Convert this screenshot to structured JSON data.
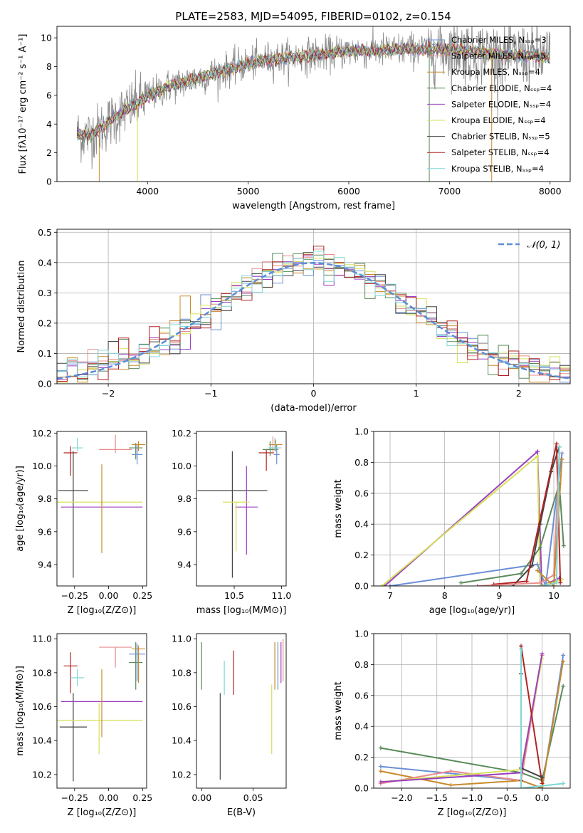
{
  "chart_data": [
    {
      "type": "line",
      "title": "PLATE=2583, MJD=54095, FIBERID=0102, z=0.154",
      "xlabel": "wavelength [Angstrom, rest frame]",
      "ylabel": "Flux [fλ10⁻¹⁷ erg cm⁻² s⁻¹ A⁻¹]",
      "xlim": [
        3100,
        8200
      ],
      "ylim": [
        0,
        10.8
      ],
      "xticks": [
        "4000",
        "5000",
        "6000",
        "7000",
        "8000"
      ],
      "yticks": [
        "0",
        "2",
        "4",
        "6",
        "8",
        "10"
      ],
      "grid": false,
      "legend_position": "right",
      "series": [
        {
          "name": "Chabrier MILES, Nₛₛₚ=3",
          "color": "#6b8fd6"
        },
        {
          "name": "Salpeter MILES, Nₛₛₚ=5",
          "color": "#e88b8b"
        },
        {
          "name": "Kroupa MILES, Nₛₛₚ=4",
          "color": "#c88a2a"
        },
        {
          "name": "Chabrier ELODIE, Nₛₛₚ=4",
          "color": "#5a8a5a"
        },
        {
          "name": "Salpeter ELODIE, Nₛₛₚ=4",
          "color": "#9b3fbf"
        },
        {
          "name": "Kroupa ELODIE, Nₛₛₚ=4",
          "color": "#d6e05a"
        },
        {
          "name": "Chabrier STELIB, Nₛₛₚ=5",
          "color": "#444444"
        },
        {
          "name": "Salpeter STELIB, Nₛₛₚ=4",
          "color": "#b22222"
        },
        {
          "name": "Kroupa STELIB, Nₛₛₚ=4",
          "color": "#7fd6d6"
        }
      ],
      "continuum": {
        "x": [
          3300,
          3400,
          3500,
          3700,
          3900,
          4000,
          4200,
          4500,
          4800,
          5000,
          5200,
          5500,
          5800,
          6000,
          6300,
          6600,
          7000,
          7200,
          7500,
          7800,
          8000
        ],
        "y": [
          3.3,
          3.2,
          3.5,
          4.6,
          5.5,
          5.9,
          6.6,
          7.2,
          7.8,
          8.2,
          8.5,
          8.7,
          8.9,
          9.1,
          9.1,
          9.2,
          9.2,
          9.1,
          8.8,
          8.8,
          8.6
        ]
      },
      "data_color": "#888888"
    },
    {
      "type": "line",
      "xlabel": "(data-model)/error",
      "ylabel": "Normed distribution",
      "xlim": [
        -2.5,
        2.5
      ],
      "ylim": [
        0,
        0.51
      ],
      "xticks": [
        "−2",
        "−1",
        "0",
        "1",
        "2"
      ],
      "yticks": [
        "0.0",
        "0.1",
        "0.2",
        "0.3",
        "0.4",
        "0.5"
      ],
      "grid": true,
      "legend": "𝒩(0, 1)",
      "legend_position": "top-right",
      "gaussian_color": "#5b8bd6",
      "bin_width": 0.1
    },
    {
      "type": "scatter",
      "xlabel": "Z [log₁₀(Z/Z⊙)]",
      "ylabel": "age  [log₁₀(age/yr)]",
      "xlim": [
        -0.38,
        0.28
      ],
      "ylim": [
        9.27,
        10.21
      ],
      "xticks": [
        "−0.25",
        "0.00",
        "0.25"
      ],
      "yticks": [
        "9.4",
        "9.6",
        "9.8",
        "10.0",
        "10.2"
      ],
      "points": [
        {
          "x": -0.26,
          "y": 9.85,
          "xerr": 0.11,
          "yerr_lo": 0.53,
          "yerr_hi": 0.24,
          "color": "#444444"
        },
        {
          "x": -0.05,
          "y": 9.75,
          "xerr": 0.3,
          "yerr_lo": 0.0,
          "yerr_hi": 0.0,
          "color": "#9b3fbf"
        },
        {
          "x": -0.07,
          "y": 9.78,
          "xerr": 0.32,
          "yerr_lo": 0.0,
          "yerr_hi": 0.0,
          "color": "#d6e05a"
        },
        {
          "x": -0.05,
          "y": 9.75,
          "xerr": 0.0,
          "yerr_lo": 0.28,
          "yerr_hi": 0.26,
          "color": "#c88a2a"
        },
        {
          "x": -0.28,
          "y": 10.08,
          "xerr": 0.05,
          "yerr_lo": 0.14,
          "yerr_hi": 0.04,
          "color": "#b22222"
        },
        {
          "x": 0.05,
          "y": 10.1,
          "xerr": 0.12,
          "yerr_lo": 0.02,
          "yerr_hi": 0.09,
          "color": "#e88b8b"
        },
        {
          "x": 0.2,
          "y": 10.11,
          "xerr": 0.05,
          "yerr_lo": 0.07,
          "yerr_hi": 0.03,
          "color": "#5a8a5a"
        },
        {
          "x": 0.21,
          "y": 10.07,
          "xerr": 0.04,
          "yerr_lo": 0.06,
          "yerr_hi": 0.06,
          "color": "#6b8fd6"
        },
        {
          "x": 0.22,
          "y": 10.13,
          "xerr": 0.05,
          "yerr_lo": 0.04,
          "yerr_hi": 0.02,
          "color": "#c88a2a"
        },
        {
          "x": -0.23,
          "y": 10.11,
          "xerr": 0.04,
          "yerr_lo": 0.02,
          "yerr_hi": 0.06,
          "color": "#7fd6d6"
        }
      ]
    },
    {
      "type": "scatter",
      "xlabel": "mass [log₁₀(M/M⊙)]",
      "xlim": [
        10.1,
        11.05
      ],
      "ylim": [
        9.27,
        10.21
      ],
      "xticks": [
        "10.5",
        "11.0"
      ],
      "yticks": [
        "9.4",
        "9.6",
        "9.8",
        "10.0",
        "10.2"
      ],
      "points": [
        {
          "x": 10.48,
          "y": 9.85,
          "xerr": 0.37,
          "yerr_lo": 0.53,
          "yerr_hi": 0.24,
          "color": "#444444"
        },
        {
          "x": 10.63,
          "y": 9.75,
          "xerr": 0.12,
          "yerr_lo": 0.29,
          "yerr_hi": 0.25,
          "color": "#9b3fbf"
        },
        {
          "x": 10.52,
          "y": 9.78,
          "xerr": 0.14,
          "yerr_lo": 0.3,
          "yerr_hi": 0.0,
          "color": "#d6e05a"
        },
        {
          "x": 10.84,
          "y": 10.08,
          "xerr": 0.08,
          "yerr_lo": 0.11,
          "yerr_hi": 0.02,
          "color": "#b22222"
        },
        {
          "x": 10.91,
          "y": 10.1,
          "xerr": 0.06,
          "yerr_lo": 0.03,
          "yerr_hi": 0.08,
          "color": "#e88b8b"
        },
        {
          "x": 10.88,
          "y": 10.1,
          "xerr": 0.08,
          "yerr_lo": 0.04,
          "yerr_hi": 0.05,
          "color": "#5a8a5a"
        },
        {
          "x": 10.95,
          "y": 10.07,
          "xerr": 0.03,
          "yerr_lo": 0.06,
          "yerr_hi": 0.06,
          "color": "#6b8fd6"
        },
        {
          "x": 10.94,
          "y": 10.13,
          "xerr": 0.07,
          "yerr_lo": 0.04,
          "yerr_hi": 0.03,
          "color": "#c88a2a"
        },
        {
          "x": 10.93,
          "y": 10.11,
          "xerr": 0.07,
          "yerr_lo": 0.02,
          "yerr_hi": 0.06,
          "color": "#7fd6d6"
        }
      ]
    },
    {
      "type": "line",
      "xlabel": "age  [log₁₀(age/yr)]",
      "ylabel": "mass weight",
      "xlim": [
        6.7,
        10.3
      ],
      "ylim": [
        0,
        1.0
      ],
      "xticks": [
        "7",
        "8",
        "9",
        "10"
      ],
      "yticks": [
        "0.0",
        "0.2",
        "0.4",
        "0.6",
        "0.8",
        "1.0"
      ],
      "grid": true,
      "series": [
        {
          "color": "#9b3fbf",
          "x": [
            6.9,
            9.7,
            9.78,
            10.1
          ],
          "y": [
            0.0,
            0.87,
            0.0,
            0.05
          ]
        },
        {
          "color": "#d6e05a",
          "x": [
            6.85,
            9.7,
            9.75,
            10.15
          ],
          "y": [
            0.0,
            0.84,
            0.0,
            0.04
          ]
        },
        {
          "color": "#6b8fd6",
          "x": [
            7.0,
            9.7,
            9.85,
            10.15
          ],
          "y": [
            0.0,
            0.14,
            0.0,
            0.86
          ]
        },
        {
          "color": "#5a8a5a",
          "x": [
            8.3,
            9.4,
            9.75,
            10.1,
            10.18
          ],
          "y": [
            0.02,
            0.08,
            0.25,
            0.66,
            0.26
          ]
        },
        {
          "color": "#444444",
          "x": [
            9.25,
            9.6,
            9.75,
            9.95,
            10.1
          ],
          "y": [
            0.0,
            0.13,
            0.4,
            0.74,
            0.9
          ]
        },
        {
          "color": "#b22222",
          "x": [
            8.9,
            9.5,
            10.05,
            10.12
          ],
          "y": [
            0.01,
            0.03,
            0.92,
            0.02
          ]
        },
        {
          "color": "#e88b8b",
          "x": [
            8.6,
            9.75,
            10.0,
            10.1
          ],
          "y": [
            0.0,
            0.02,
            0.07,
            0.86
          ]
        },
        {
          "color": "#c88a2a",
          "x": [
            9.7,
            10.0,
            10.15
          ],
          "y": [
            0.1,
            0.0,
            0.82
          ]
        },
        {
          "color": "#7fd6d6",
          "x": [
            9.8,
            10.05,
            10.1
          ],
          "y": [
            0.0,
            0.02,
            0.9
          ]
        }
      ]
    },
    {
      "type": "scatter",
      "xlabel": "Z [log₁₀(Z/Z⊙)]",
      "ylabel": "mass [log₁₀(M/M⊙)]",
      "xlim": [
        -0.38,
        0.28
      ],
      "ylim": [
        10.12,
        11.03
      ],
      "xticks": [
        "−0.25",
        "0.00",
        "0.25"
      ],
      "yticks": [
        "10.2",
        "10.4",
        "10.6",
        "10.8",
        "11.0"
      ],
      "points": [
        {
          "x": -0.26,
          "y": 10.48,
          "xerr": 0.1,
          "yerr_lo": 0.32,
          "yerr_hi": 0.2,
          "color": "#444444"
        },
        {
          "x": -0.05,
          "y": 10.63,
          "xerr": 0.3,
          "yerr_lo": 0.0,
          "yerr_hi": 0.0,
          "color": "#9b3fbf"
        },
        {
          "x": -0.07,
          "y": 10.52,
          "xerr": 0.32,
          "yerr_lo": 0.2,
          "yerr_hi": 0.1,
          "color": "#d6e05a"
        },
        {
          "x": -0.05,
          "y": 10.63,
          "xerr": 0.0,
          "yerr_lo": 0.21,
          "yerr_hi": 0.19,
          "color": "#c88a2a"
        },
        {
          "x": -0.28,
          "y": 10.84,
          "xerr": 0.05,
          "yerr_lo": 0.16,
          "yerr_hi": 0.08,
          "color": "#b22222"
        },
        {
          "x": 0.05,
          "y": 10.95,
          "xerr": 0.12,
          "yerr_lo": 0.12,
          "yerr_hi": 0.0,
          "color": "#e88b8b"
        },
        {
          "x": 0.2,
          "y": 10.86,
          "xerr": 0.05,
          "yerr_lo": 0.16,
          "yerr_hi": 0.12,
          "color": "#5a8a5a"
        },
        {
          "x": 0.21,
          "y": 10.91,
          "xerr": 0.06,
          "yerr_lo": 0.16,
          "yerr_hi": 0.06,
          "color": "#6b8fd6"
        },
        {
          "x": 0.22,
          "y": 10.94,
          "xerr": 0.05,
          "yerr_lo": 0.2,
          "yerr_hi": 0.02,
          "color": "#c88a2a"
        },
        {
          "x": -0.23,
          "y": 10.77,
          "xerr": 0.05,
          "yerr_lo": 0.05,
          "yerr_hi": 0.05,
          "color": "#7fd6d6"
        }
      ]
    },
    {
      "type": "scatter",
      "xlabel": "E(B-V)",
      "xlim": [
        -0.005,
        0.082
      ],
      "ylim": [
        10.12,
        11.03
      ],
      "xticks": [
        "0.00",
        "0.05"
      ],
      "yticks": [
        "10.2",
        "10.4",
        "10.6",
        "10.8",
        "11.0"
      ],
      "points": [
        {
          "x": 0.0,
          "y": 10.84,
          "yerr_lo": 0.14,
          "yerr_hi": 0.14,
          "color": "#5a8a5a"
        },
        {
          "x": 0.018,
          "y": 10.43,
          "yerr_lo": 0.26,
          "yerr_hi": 0.25,
          "color": "#444444"
        },
        {
          "x": 0.022,
          "y": 10.77,
          "yerr_lo": 0.1,
          "yerr_hi": 0.1,
          "color": "#7fd6d6"
        },
        {
          "x": 0.031,
          "y": 10.84,
          "yerr_lo": 0.17,
          "yerr_hi": 0.09,
          "color": "#b22222"
        },
        {
          "x": 0.068,
          "y": 10.5,
          "yerr_lo": 0.18,
          "yerr_hi": 0.23,
          "color": "#d6e05a"
        },
        {
          "x": 0.071,
          "y": 10.84,
          "yerr_lo": 0.14,
          "yerr_hi": 0.14,
          "color": "#c88a2a"
        },
        {
          "x": 0.074,
          "y": 10.84,
          "yerr_lo": 0.14,
          "yerr_hi": 0.14,
          "color": "#6b8fd6"
        },
        {
          "x": 0.077,
          "y": 10.84,
          "yerr_lo": 0.1,
          "yerr_hi": 0.14,
          "color": "#9b3fbf"
        },
        {
          "x": 0.079,
          "y": 10.85,
          "yerr_lo": 0.1,
          "yerr_hi": 0.15,
          "color": "#e88b8b"
        }
      ]
    },
    {
      "type": "line",
      "xlabel": "Z [log₁₀(Z/Z⊙)]",
      "ylabel": "mass weight",
      "xlim": [
        -2.4,
        0.4
      ],
      "ylim": [
        0,
        1.0
      ],
      "xticks": [
        "−2.0",
        "−1.5",
        "−1.0",
        "−0.5",
        "0.0"
      ],
      "yticks": [
        "0.0",
        "0.2",
        "0.4",
        "0.6",
        "0.8",
        "1.0"
      ],
      "grid": true,
      "series": [
        {
          "color": "#5a8a5a",
          "x": [
            -2.3,
            -0.3,
            0.0,
            0.3
          ],
          "y": [
            0.26,
            0.1,
            0.05,
            0.66
          ]
        },
        {
          "color": "#6b8fd6",
          "x": [
            -2.3,
            -0.3,
            0.0,
            0.3
          ],
          "y": [
            0.14,
            0.05,
            0.0,
            0.86
          ]
        },
        {
          "color": "#c88a2a",
          "x": [
            -2.3,
            -1.3,
            -0.3,
            0.0,
            0.3
          ],
          "y": [
            0.11,
            0.02,
            0.05,
            0.0,
            0.82
          ]
        },
        {
          "color": "#e88b8b",
          "x": [
            -2.3,
            -1.3,
            -0.3,
            0.0
          ],
          "y": [
            0.03,
            0.11,
            0.05,
            0.86
          ]
        },
        {
          "color": "#d6e05a",
          "x": [
            -2.3,
            -0.3,
            0.0
          ],
          "y": [
            0.04,
            0.12,
            0.84
          ]
        },
        {
          "color": "#9b3fbf",
          "x": [
            -2.3,
            -0.3,
            0.0
          ],
          "y": [
            0.04,
            0.1,
            0.87
          ]
        },
        {
          "color": "#b22222",
          "x": [
            -0.3,
            -0.3,
            0.0
          ],
          "y": [
            0.05,
            0.92,
            0.03
          ]
        },
        {
          "color": "#444444",
          "x": [
            -0.3,
            -0.3,
            0.0
          ],
          "y": [
            0.74,
            0.13,
            0.07
          ]
        },
        {
          "color": "#7fd6d6",
          "x": [
            -0.3,
            -0.3,
            0.3
          ],
          "y": [
            0.9,
            0.0,
            0.03
          ]
        }
      ]
    }
  ]
}
